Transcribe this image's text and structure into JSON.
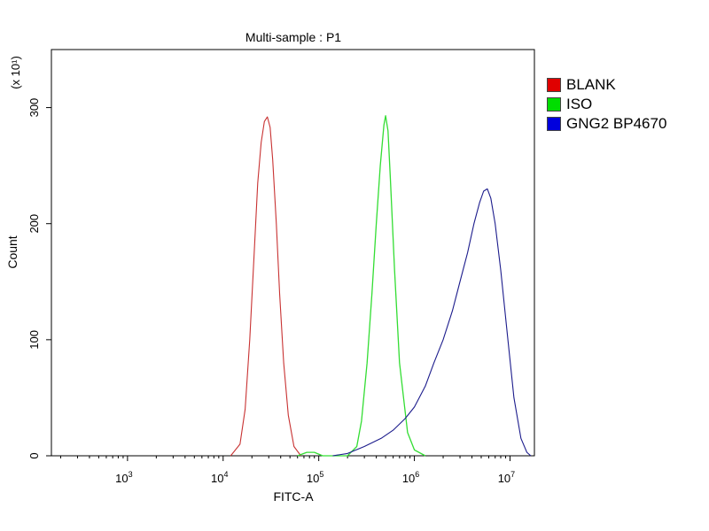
{
  "chart_data": {
    "type": "line",
    "title": "Multi-sample : P1",
    "xlabel": "FITC-A",
    "ylabel": "Count",
    "y_multiplier": "(x 10¹)",
    "xscale": "log",
    "xlim": [
      160,
      18000000.0
    ],
    "ylim": [
      0,
      350
    ],
    "x_ticks": [
      {
        "value": 1000,
        "base": "10",
        "exp": "3"
      },
      {
        "value": 10000,
        "base": "10",
        "exp": "4"
      },
      {
        "value": 100000,
        "base": "10",
        "exp": "5"
      },
      {
        "value": 1000000,
        "base": "10",
        "exp": "6"
      },
      {
        "value": 10000000,
        "base": "10",
        "exp": "7"
      }
    ],
    "y_ticks": [
      0,
      100,
      200,
      300
    ],
    "legend_position": "right",
    "grid": false,
    "series": [
      {
        "name": "BLANK",
        "color": "#c83232",
        "legend_color": "#e00000",
        "x": [
          12000,
          15000,
          17000,
          19000,
          21000,
          23000,
          25000,
          27000,
          29000,
          31000,
          33000,
          36000,
          39000,
          43000,
          48000,
          55000,
          65000
        ],
        "y": [
          0,
          10,
          40,
          100,
          170,
          235,
          270,
          288,
          292,
          283,
          255,
          200,
          140,
          80,
          35,
          8,
          0
        ]
      },
      {
        "name": "ISO",
        "color": "#33dd33",
        "legend_color": "#00dd00",
        "x": [
          60000,
          75000,
          90000,
          110000,
          200000,
          250000,
          280000,
          320000,
          360000,
          400000,
          440000,
          480000,
          500000,
          530000,
          560000,
          620000,
          700000,
          850000,
          1000000,
          1300000
        ],
        "y": [
          0,
          3,
          3,
          0,
          0,
          8,
          30,
          80,
          140,
          200,
          250,
          285,
          293,
          280,
          240,
          160,
          80,
          20,
          5,
          0
        ],
        "stroke_width": 1.3
      },
      {
        "name": "GNG2 BP4670",
        "color": "#1c1c8c",
        "legend_color": "#0000dd",
        "x": [
          140000,
          200000,
          300000,
          450000,
          600000,
          800000,
          1000000,
          1300000,
          1600000,
          2000000,
          2500000,
          3000000,
          3600000,
          4200000,
          4800000,
          5300000,
          5800000,
          6300000,
          7000000,
          8000000,
          9500000,
          11000000,
          13000000,
          15000000,
          16500000
        ],
        "y": [
          0,
          2,
          8,
          15,
          22,
          32,
          42,
          60,
          80,
          100,
          125,
          150,
          175,
          200,
          218,
          228,
          230,
          222,
          200,
          160,
          100,
          50,
          15,
          3,
          0
        ]
      }
    ]
  }
}
